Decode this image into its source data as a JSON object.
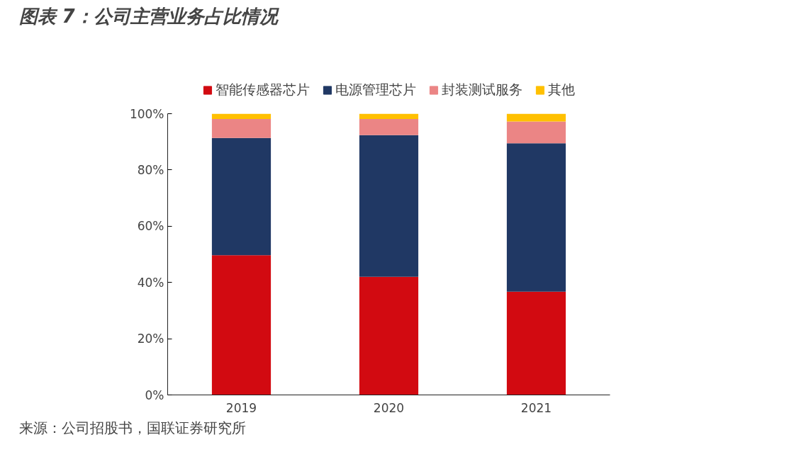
{
  "chart_data": {
    "type": "bar",
    "stacked": true,
    "title": "图表 7：公司主营业务占比情况",
    "categories": [
      "2019",
      "2020",
      "2021"
    ],
    "series": [
      {
        "name": "智能传感器芯片",
        "color": "#d20a11",
        "values": [
          49.7,
          42.0,
          36.7
        ]
      },
      {
        "name": "电源管理芯片",
        "color": "#203864",
        "values": [
          41.7,
          50.4,
          52.8
        ]
      },
      {
        "name": "封装测试服务",
        "color": "#eb8585",
        "values": [
          6.7,
          5.7,
          7.7
        ]
      },
      {
        "name": "其他",
        "color": "#ffc000",
        "values": [
          1.9,
          1.9,
          2.8
        ]
      }
    ],
    "ylim": [
      0,
      100
    ],
    "yticks": [
      {
        "value": 0,
        "label": "0%"
      },
      {
        "value": 20,
        "label": "20%"
      },
      {
        "value": 40,
        "label": "40%"
      },
      {
        "value": 60,
        "label": "60%"
      },
      {
        "value": 80,
        "label": "80%"
      },
      {
        "value": 100,
        "label": "100%"
      }
    ],
    "grid": false,
    "legend": "top",
    "annotations": [
      "来源：公司招股书，国联证券研究所"
    ]
  }
}
